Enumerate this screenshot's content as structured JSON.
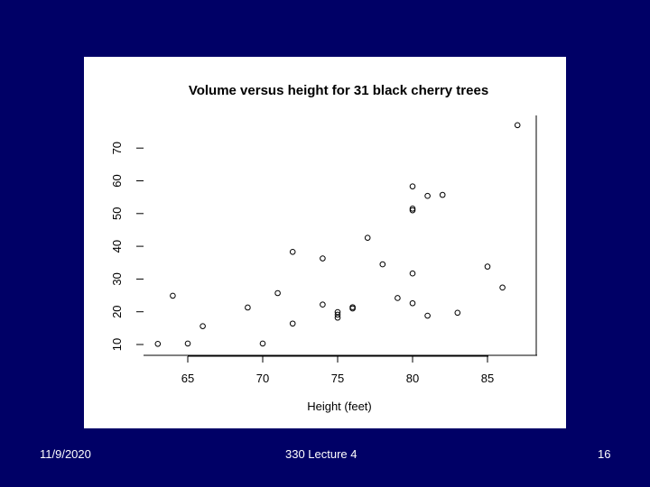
{
  "slide": {
    "background_color": "#000066",
    "footer": {
      "date": "11/9/2020",
      "lecture": "330 Lecture 4",
      "page": "16"
    }
  },
  "chart_data": {
    "type": "scatter",
    "title": "Volume versus height for 31 black cherry trees",
    "xlabel": "Height (feet)",
    "ylabel": "",
    "xlim": [
      62,
      88
    ],
    "ylim": [
      8,
      80
    ],
    "x_ticks": [
      65,
      70,
      75,
      80,
      85
    ],
    "y_ticks": [
      10,
      20,
      30,
      40,
      50,
      60,
      70
    ],
    "x_tick_labels": [
      "65",
      "70",
      "75",
      "80",
      "85"
    ],
    "y_tick_labels": [
      "10",
      "20",
      "30",
      "40",
      "50",
      "60",
      "70"
    ],
    "grid": false,
    "marker": "open-circle",
    "x": [
      70,
      65,
      63,
      72,
      81,
      83,
      66,
      75,
      80,
      75,
      79,
      76,
      76,
      69,
      75,
      74,
      85,
      86,
      71,
      64,
      78,
      80,
      74,
      72,
      77,
      81,
      82,
      80,
      80,
      80,
      87
    ],
    "y": [
      10.3,
      10.3,
      10.2,
      16.4,
      18.8,
      19.7,
      15.6,
      18.2,
      22.6,
      19.9,
      24.2,
      21.0,
      21.4,
      21.3,
      19.1,
      22.2,
      33.8,
      27.4,
      25.7,
      24.9,
      34.5,
      31.7,
      36.3,
      38.3,
      42.6,
      55.4,
      55.7,
      58.3,
      51.5,
      51.0,
      77.0
    ]
  }
}
